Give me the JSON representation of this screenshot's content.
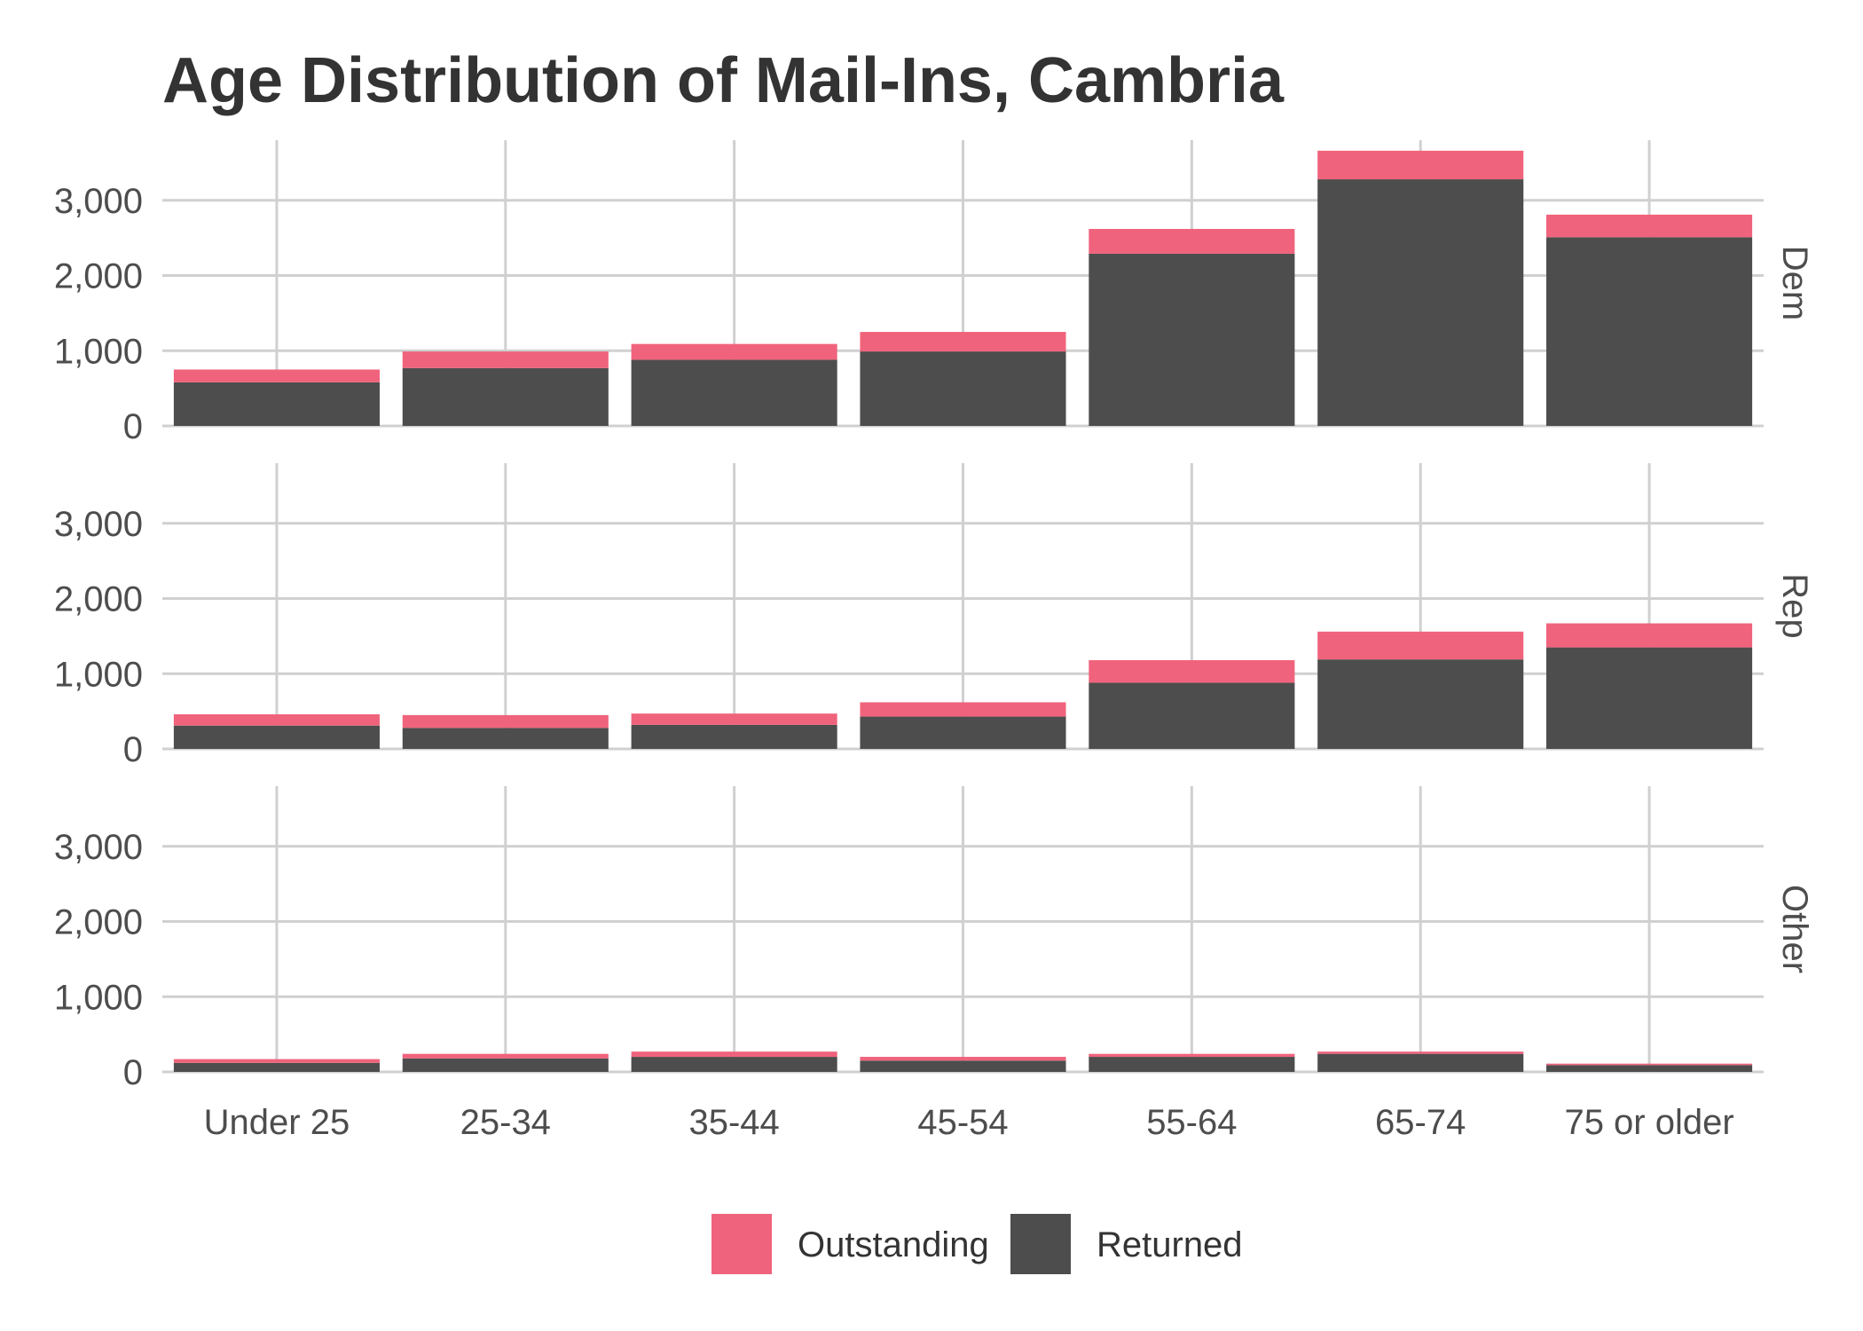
{
  "chart_data": {
    "type": "bar",
    "stacked": true,
    "title": "Age Distribution of Mail-Ins, Cambria",
    "xlabel": "",
    "ylabel": "",
    "categories": [
      "Under 25",
      "25-34",
      "35-44",
      "45-54",
      "55-64",
      "65-74",
      "75 or older"
    ],
    "ylim": [
      0,
      3800
    ],
    "yticks": [
      0,
      1000,
      2000,
      3000
    ],
    "ytick_labels": [
      "0",
      "1,000",
      "2,000",
      "3,000"
    ],
    "grid": true,
    "legend_position": "bottom",
    "colors": {
      "Outstanding": "#f0637c",
      "Returned": "#4d4d4d"
    },
    "facets": [
      {
        "name": "Dem",
        "series": [
          {
            "name": "Returned",
            "values": [
              580,
              770,
              880,
              990,
              2290,
              3280,
              2510
            ]
          },
          {
            "name": "Outstanding",
            "values": [
              170,
              220,
              210,
              260,
              330,
              380,
              300
            ]
          }
        ]
      },
      {
        "name": "Rep",
        "series": [
          {
            "name": "Returned",
            "values": [
              310,
              280,
              320,
              430,
              880,
              1190,
              1350
            ]
          },
          {
            "name": "Outstanding",
            "values": [
              150,
              170,
              150,
              190,
              300,
              370,
              320
            ]
          }
        ]
      },
      {
        "name": "Other",
        "series": [
          {
            "name": "Returned",
            "values": [
              120,
              180,
              200,
              150,
              200,
              240,
              90
            ]
          },
          {
            "name": "Outstanding",
            "values": [
              50,
              60,
              70,
              50,
              40,
              30,
              20
            ]
          }
        ]
      }
    ],
    "legend": [
      "Outstanding",
      "Returned"
    ]
  }
}
